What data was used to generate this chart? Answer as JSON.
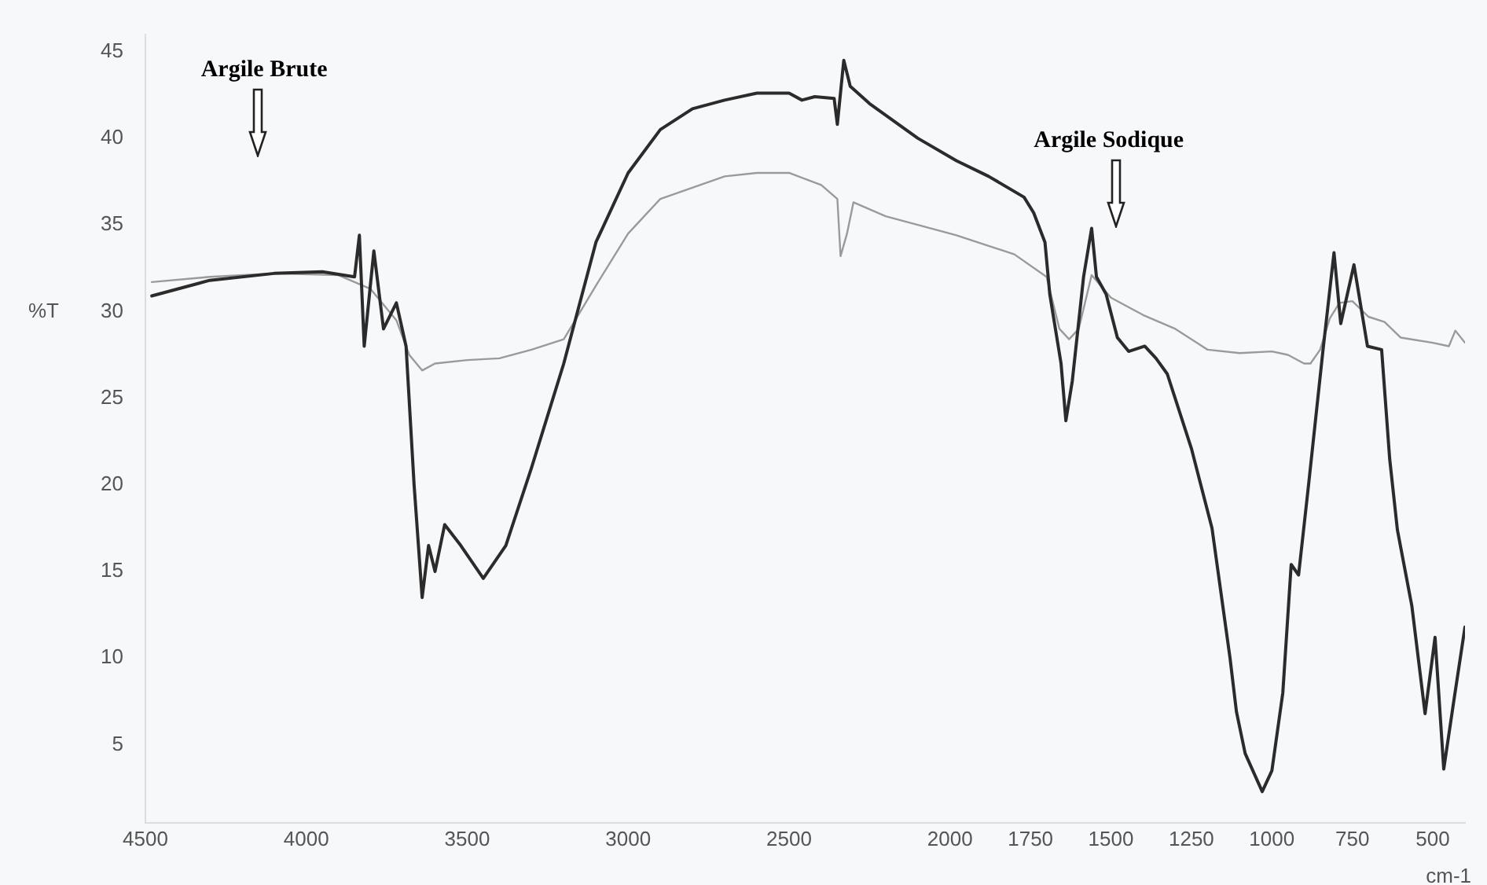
{
  "chart_data": {
    "type": "line",
    "xlabel": "cm-1",
    "ylabel": "%T",
    "xlim": [
      4500,
      400
    ],
    "xticks": [
      4500,
      4000,
      3500,
      3000,
      2500,
      2000,
      1750,
      1500,
      1250,
      1000,
      750,
      500
    ],
    "ylim": [
      0.5,
      46
    ],
    "yticks": [
      5,
      10,
      15,
      20,
      25,
      30,
      35,
      40,
      45
    ],
    "grid": false,
    "legend": false,
    "marker": "none",
    "line_style": "solid",
    "annotations": [
      "Argile Brute",
      "Argile Sodique"
    ],
    "series": [
      {
        "color": "#2b2b2b",
        "x": [
          4480,
          4300,
          4100,
          3950,
          3850,
          3835,
          3820,
          3790,
          3760,
          3720,
          3690,
          3665,
          3640,
          3620,
          3600,
          3570,
          3520,
          3450,
          3380,
          3300,
          3200,
          3150,
          3100,
          3000,
          2900,
          2800,
          2700,
          2600,
          2500,
          2460,
          2420,
          2360,
          2350,
          2330,
          2310,
          2250,
          2100,
          1980,
          1880,
          1770,
          1740,
          1705,
          1690,
          1655,
          1640,
          1620,
          1585,
          1560,
          1545,
          1515,
          1480,
          1445,
          1395,
          1360,
          1325,
          1250,
          1186,
          1130,
          1110,
          1083,
          1030,
          1000,
          966,
          940,
          917,
          886,
          841,
          807,
          786,
          745,
          703,
          659,
          634,
          610,
          565,
          524,
          493,
          466,
          435,
          400
        ],
        "values": [
          30.9,
          31.8,
          32.2,
          32.3,
          32.0,
          34.4,
          28.0,
          33.5,
          29.0,
          30.5,
          28.0,
          20.0,
          13.5,
          16.5,
          15.0,
          17.7,
          16.5,
          14.6,
          16.5,
          21.0,
          27.0,
          30.5,
          34.0,
          38.0,
          40.5,
          41.7,
          42.2,
          42.6,
          42.6,
          42.2,
          42.4,
          42.3,
          40.8,
          44.5,
          43.0,
          42.0,
          40.0,
          38.7,
          37.8,
          36.6,
          35.7,
          34.0,
          31.0,
          27.0,
          23.7,
          26.0,
          32.0,
          34.8,
          32.0,
          31.0,
          28.5,
          27.7,
          28.0,
          27.3,
          26.4,
          22.1,
          17.5,
          10.0,
          6.9,
          4.5,
          2.3,
          3.5,
          8.0,
          15.4,
          14.8,
          20.0,
          27.8,
          33.4,
          29.3,
          32.7,
          28.0,
          27.8,
          21.5,
          17.4,
          13.0,
          6.8,
          11.2,
          3.6,
          7.5,
          11.8
        ]
      },
      {
        "color": "#9a9a9a",
        "x": [
          4480,
          4300,
          4100,
          3900,
          3800,
          3720,
          3680,
          3640,
          3600,
          3500,
          3400,
          3300,
          3200,
          3100,
          3000,
          2900,
          2700,
          2600,
          2500,
          2400,
          2350,
          2340,
          2320,
          2300,
          2200,
          2000,
          1980,
          1800,
          1700,
          1660,
          1630,
          1600,
          1560,
          1500,
          1400,
          1300,
          1200,
          1100,
          1000,
          950,
          900,
          880,
          850,
          820,
          790,
          750,
          700,
          650,
          600,
          500,
          450,
          430,
          400
        ],
        "values": [
          31.7,
          32.0,
          32.2,
          32.1,
          31.3,
          29.5,
          27.5,
          26.6,
          27.0,
          27.2,
          27.3,
          27.8,
          28.4,
          31.5,
          34.5,
          36.5,
          37.8,
          38.0,
          38.0,
          37.3,
          36.5,
          33.2,
          34.5,
          36.3,
          35.5,
          34.5,
          34.4,
          33.3,
          32.0,
          29.0,
          28.4,
          29.0,
          32.1,
          30.8,
          29.8,
          29.0,
          27.8,
          27.6,
          27.7,
          27.5,
          27.0,
          27.0,
          27.8,
          29.6,
          30.5,
          30.6,
          29.7,
          29.4,
          28.5,
          28.2,
          28.0,
          28.9,
          28.2
        ]
      }
    ]
  }
}
